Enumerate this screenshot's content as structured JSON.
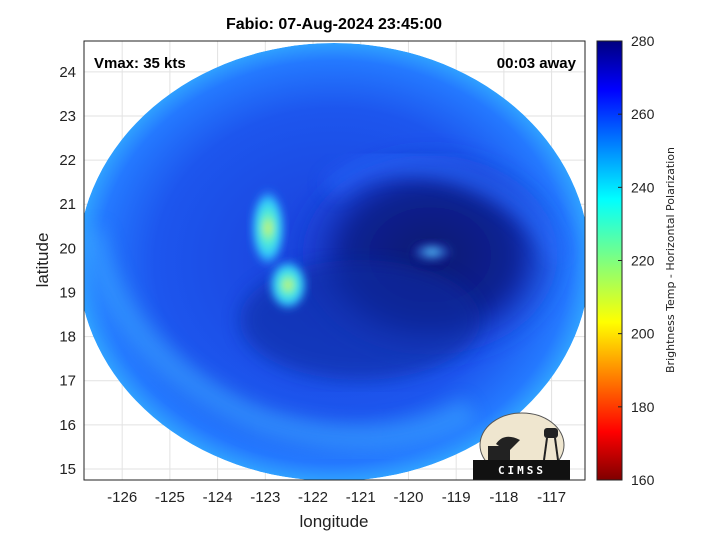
{
  "title": "Fabio: 07-Aug-2024 23:45:00",
  "annotations": {
    "vmax": "Vmax: 35 kts",
    "away": "00:03 away"
  },
  "map": {
    "xlabel": "longitude",
    "ylabel": "latitude",
    "xticks": [
      "-126",
      "-125",
      "-124",
      "-123",
      "-122",
      "-121",
      "-120",
      "-119",
      "-118",
      "-117"
    ],
    "yticks": [
      "24",
      "23",
      "22",
      "21",
      "20",
      "19",
      "18",
      "17",
      "16",
      "15"
    ],
    "xlim": [
      -126.8,
      -116.3
    ],
    "ylim": [
      14.75,
      24.7
    ],
    "grid": true
  },
  "colorbar": {
    "label": "Brightness Temp - Horizontal Polarization",
    "ticks": [
      "280",
      "260",
      "240",
      "220",
      "200",
      "180",
      "160"
    ],
    "range": [
      160,
      280
    ],
    "colormap": "jet"
  },
  "logo": {
    "text": "CIMSS"
  },
  "colors": {
    "disk_outer": "#2f9cff",
    "disk_main": "#1a4fe6",
    "core_dark": "#0d1f8a",
    "hot_cyan": "#33e7ff",
    "hot_yellow": "#e6f23a"
  }
}
